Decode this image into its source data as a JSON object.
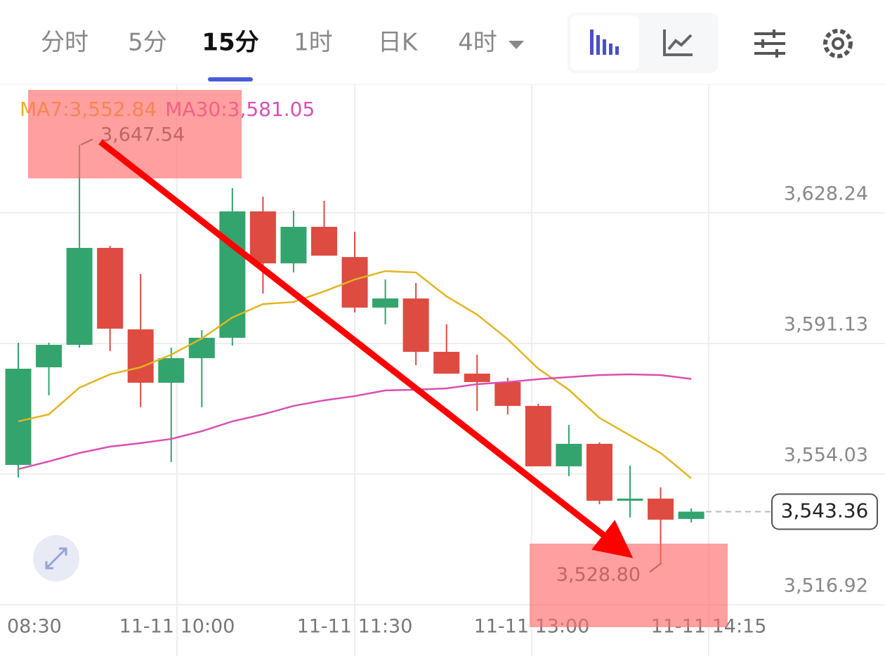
{
  "tabs": [
    "分时",
    "5分",
    "15分",
    "1时",
    "日K",
    "4时"
  ],
  "active_tab": 2,
  "chart_data": {
    "type": "candlestick",
    "up_color": "#33a46d",
    "down_color": "#dd4b41",
    "open": [
      3556.63,
      3584.36,
      3590.74,
      3618.27,
      3595.13,
      3579.97,
      3586.95,
      3592.74,
      3628.64,
      3613.88,
      3624.25,
      3615.67,
      3601.31,
      3603.91,
      3588.75,
      3582.56,
      3580.17,
      3573.39,
      3556.23,
      3562.62,
      3546.46,
      3547.06,
      3541.28
    ],
    "high": [
      3591.34,
      3591.34,
      3647.54,
      3618.87,
      3610.89,
      3589.94,
      3594.93,
      3635.22,
      3632.83,
      3628.84,
      3631.63,
      3622.85,
      3609.29,
      3608.29,
      3596.53,
      3587.95,
      3581.37,
      3573.99,
      3568.0,
      3563.02,
      3556.43,
      3550.25,
      3544.27
    ],
    "low": [
      3553.04,
      3576.38,
      3589.94,
      3588.95,
      3572.99,
      3557.43,
      3572.99,
      3590.54,
      3605.3,
      3611.29,
      3616.07,
      3599.92,
      3596.53,
      3584.96,
      3582.56,
      3571.99,
      3570.99,
      3556.23,
      3553.44,
      3545.46,
      3541.68,
      3528.8,
      3540.28
    ],
    "close": [
      3583.96,
      3590.74,
      3618.27,
      3595.33,
      3579.97,
      3586.95,
      3592.74,
      3628.64,
      3613.88,
      3624.25,
      3616.07,
      3601.31,
      3603.91,
      3588.75,
      3582.56,
      3580.17,
      3573.39,
      3556.23,
      3562.62,
      3546.46,
      3547.06,
      3541.08,
      3543.36
    ],
    "series": [
      {
        "name": "MA7:3,552.84",
        "color": "#e2b520",
        "values": [
          3569.0,
          3570.99,
          3578.57,
          3582.36,
          3584.36,
          3587.95,
          3592.54,
          3598.52,
          3602.31,
          3602.91,
          3605.9,
          3609.29,
          3611.68,
          3611.29,
          3604.5,
          3599.32,
          3592.34,
          3583.96,
          3577.98,
          3570.0,
          3565.01,
          3560.02,
          3552.84
        ]
      },
      {
        "name": "MA30:3,581.05",
        "color": "#d84fb3",
        "values": [
          3555.44,
          3557.63,
          3560.02,
          3561.82,
          3562.82,
          3564.01,
          3566.21,
          3569.0,
          3570.99,
          3573.39,
          3574.98,
          3576.18,
          3577.78,
          3577.98,
          3578.37,
          3579.57,
          3580.17,
          3580.97,
          3581.57,
          3582.16,
          3582.36,
          3582.16,
          3581.05
        ]
      }
    ],
    "ylim": [
      3516.92,
      3664.74
    ],
    "yticks": [
      {
        "value": 3628.24,
        "label": "3,628.24"
      },
      {
        "value": 3591.13,
        "label": "3,591.13"
      },
      {
        "value": 3554.03,
        "label": "3,554.03"
      },
      {
        "value": 3516.92,
        "label": "3,516.92"
      }
    ],
    "x_labels": [
      "08:30",
      "11-11 10:00",
      "11-11 11:30",
      "11-11 13:00",
      "11-11 14:15"
    ],
    "high_label": {
      "value": 3647.54,
      "label": "3,647.54"
    },
    "low_label": {
      "value": 3528.8,
      "label": "3,528.80"
    },
    "last_label": {
      "value": 3543.36,
      "label": "3,543.36"
    },
    "grid": true
  }
}
